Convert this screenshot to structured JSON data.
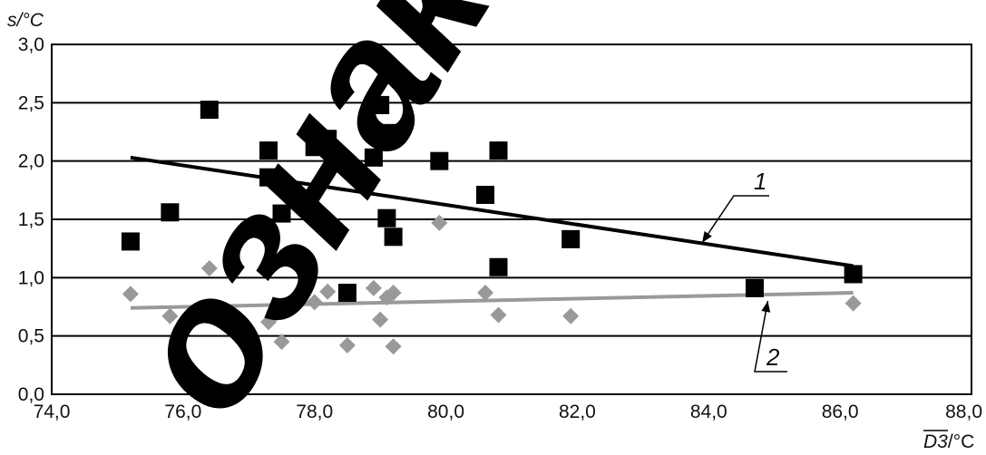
{
  "watermark": "ознакомление",
  "chart_data": {
    "type": "scatter",
    "title": "",
    "ylabel": "s/°C",
    "xlabel_overlined": "D3",
    "xlabel_suffix": "/°C",
    "xlim": [
      74.0,
      88.0
    ],
    "ylim": [
      0.0,
      3.0
    ],
    "x_ticks": [
      "74,0",
      "76,0",
      "78,0",
      "80,0",
      "82,0",
      "84,0",
      "86,0",
      "88,0"
    ],
    "y_ticks": [
      "0,0",
      "0,5",
      "1,0",
      "1,5",
      "2,0",
      "2,5",
      "3,0"
    ],
    "grid": "horizontal",
    "series": [
      {
        "marker": "square",
        "color": "#000000",
        "points": [
          [
            75.2,
            1.31
          ],
          [
            75.8,
            1.56
          ],
          [
            76.4,
            2.44
          ],
          [
            77.3,
            2.09
          ],
          [
            77.3,
            1.86
          ],
          [
            77.5,
            1.55
          ],
          [
            78.0,
            2.12
          ],
          [
            78.2,
            2.19
          ],
          [
            78.5,
            0.87
          ],
          [
            78.9,
            2.03
          ],
          [
            79.0,
            2.48
          ],
          [
            79.1,
            1.51
          ],
          [
            79.2,
            2.24
          ],
          [
            79.2,
            1.35
          ],
          [
            79.9,
            2.0
          ],
          [
            80.6,
            1.71
          ],
          [
            80.8,
            2.09
          ],
          [
            80.8,
            1.09
          ],
          [
            81.9,
            1.33
          ],
          [
            84.7,
            0.91
          ],
          [
            86.2,
            1.03
          ]
        ]
      },
      {
        "marker": "diamond",
        "color": "#999999",
        "points": [
          [
            75.2,
            0.86
          ],
          [
            75.8,
            0.67
          ],
          [
            76.4,
            1.08
          ],
          [
            77.3,
            0.62
          ],
          [
            77.4,
            0.69
          ],
          [
            77.5,
            0.45
          ],
          [
            78.0,
            0.79
          ],
          [
            78.2,
            0.88
          ],
          [
            78.5,
            0.42
          ],
          [
            78.9,
            0.91
          ],
          [
            79.0,
            0.64
          ],
          [
            79.1,
            0.83
          ],
          [
            79.2,
            0.87
          ],
          [
            79.2,
            0.41
          ],
          [
            79.9,
            1.47
          ],
          [
            80.6,
            0.87
          ],
          [
            80.8,
            0.68
          ],
          [
            81.9,
            0.67
          ],
          [
            86.2,
            0.78
          ]
        ]
      }
    ],
    "trendlines": [
      {
        "label": "1",
        "color": "#000000",
        "from": [
          75.2,
          2.03
        ],
        "to": [
          86.2,
          1.1
        ]
      },
      {
        "label": "2",
        "color": "#999999",
        "from": [
          75.2,
          0.74
        ],
        "to": [
          86.2,
          0.87
        ]
      }
    ]
  }
}
